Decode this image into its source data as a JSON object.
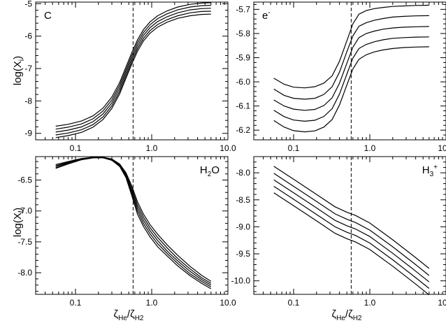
{
  "figure": {
    "ylabel": "log(X",
    "ylabel_sub": "i",
    "ylabel_end": ")",
    "xlabel_main": "ζ",
    "xlabel_sub1": "He",
    "xlabel_mid": "/ζ",
    "xlabel_sub2": "H2"
  },
  "chart_data": [
    {
      "type": "line",
      "panel": "top-left",
      "label": "C",
      "label_parts": [
        {
          "t": "C",
          "s": "normal"
        }
      ],
      "label_placement": "top-left",
      "xscale": "log",
      "xlim": [
        0.03,
        10.0
      ],
      "ylim": [
        -9.2,
        -4.95
      ],
      "xticks": [
        0.1,
        1.0,
        10.0
      ],
      "xticklabels": [
        "0.1",
        "1.0",
        "10.0"
      ],
      "yticks": [
        -9,
        -8,
        -7,
        -6,
        -5
      ],
      "yticklabels": [
        "-9",
        "-8",
        "-7",
        "-6",
        "-5"
      ],
      "vline_x": 0.57,
      "x": [
        0.055,
        0.08,
        0.12,
        0.17,
        0.23,
        0.3,
        0.38,
        0.46,
        0.55,
        0.65,
        0.78,
        0.95,
        1.2,
        1.6,
        2.2,
        3.2,
        4.5,
        6.0
      ],
      "series": [
        {
          "values": [
            -8.78,
            -8.72,
            -8.62,
            -8.46,
            -8.22,
            -7.88,
            -7.43,
            -6.95,
            -6.5,
            -6.12,
            -5.8,
            -5.56,
            -5.37,
            -5.22,
            -5.1,
            -5.02,
            -4.98,
            -4.97
          ]
        },
        {
          "values": [
            -8.87,
            -8.81,
            -8.71,
            -8.55,
            -8.31,
            -7.97,
            -7.52,
            -7.04,
            -6.59,
            -6.21,
            -5.89,
            -5.65,
            -5.46,
            -5.31,
            -5.19,
            -5.1,
            -5.06,
            -5.05
          ]
        },
        {
          "values": [
            -8.96,
            -8.9,
            -8.8,
            -8.64,
            -8.4,
            -8.06,
            -7.61,
            -7.13,
            -6.68,
            -6.3,
            -5.98,
            -5.74,
            -5.55,
            -5.4,
            -5.28,
            -5.19,
            -5.15,
            -5.14
          ]
        },
        {
          "values": [
            -9.05,
            -8.99,
            -8.89,
            -8.73,
            -8.49,
            -8.15,
            -7.7,
            -7.22,
            -6.77,
            -6.39,
            -6.07,
            -5.83,
            -5.64,
            -5.49,
            -5.37,
            -5.28,
            -5.24,
            -5.23
          ]
        },
        {
          "values": [
            -9.13,
            -9.07,
            -8.97,
            -8.81,
            -8.57,
            -8.23,
            -7.78,
            -7.3,
            -6.85,
            -6.47,
            -6.15,
            -5.91,
            -5.72,
            -5.57,
            -5.45,
            -5.37,
            -5.33,
            -5.32
          ]
        }
      ]
    },
    {
      "type": "line",
      "panel": "top-right",
      "label": "e-",
      "label_parts": [
        {
          "t": "e",
          "s": "normal"
        },
        {
          "t": "-",
          "s": "sup"
        }
      ],
      "label_placement": "top-left",
      "xscale": "log",
      "xlim": [
        0.03,
        10.0
      ],
      "ylim": [
        -6.24,
        -5.67
      ],
      "xticks": [
        0.1,
        1.0,
        10.0
      ],
      "xticklabels": [
        "0.1",
        "1.0",
        "10.0"
      ],
      "yticks": [
        -6.2,
        -6.1,
        -6.0,
        -5.9,
        -5.8,
        -5.7
      ],
      "yticklabels": [
        "-6.2",
        "-6.1",
        "-6.0",
        "-5.9",
        "-5.8",
        "-5.7"
      ],
      "vline_x": 0.57,
      "x": [
        0.055,
        0.075,
        0.1,
        0.14,
        0.19,
        0.25,
        0.32,
        0.4,
        0.5,
        0.6,
        0.72,
        0.9,
        1.15,
        1.5,
        2.0,
        2.8,
        4.0,
        6.0
      ],
      "series": [
        {
          "values": [
            -5.985,
            -6.01,
            -6.022,
            -6.025,
            -6.02,
            -6.005,
            -5.975,
            -5.915,
            -5.83,
            -5.76,
            -5.72,
            -5.705,
            -5.697,
            -5.692,
            -5.688,
            -5.686,
            -5.684,
            -5.683
          ]
        },
        {
          "values": [
            -6.03,
            -6.056,
            -6.068,
            -6.072,
            -6.068,
            -6.052,
            -6.02,
            -5.96,
            -5.875,
            -5.81,
            -5.77,
            -5.755,
            -5.745,
            -5.738,
            -5.732,
            -5.729,
            -5.727,
            -5.726
          ]
        },
        {
          "values": [
            -6.075,
            -6.1,
            -6.113,
            -6.118,
            -6.114,
            -6.098,
            -6.066,
            -6.006,
            -5.923,
            -5.857,
            -5.817,
            -5.8,
            -5.79,
            -5.782,
            -5.777,
            -5.774,
            -5.772,
            -5.771
          ]
        },
        {
          "values": [
            -6.118,
            -6.144,
            -6.158,
            -6.163,
            -6.159,
            -6.143,
            -6.111,
            -6.051,
            -5.968,
            -5.902,
            -5.862,
            -5.845,
            -5.834,
            -5.826,
            -5.82,
            -5.817,
            -5.815,
            -5.814
          ]
        },
        {
          "values": [
            -6.16,
            -6.187,
            -6.202,
            -6.207,
            -6.203,
            -6.187,
            -6.156,
            -6.096,
            -6.013,
            -5.947,
            -5.907,
            -5.888,
            -5.876,
            -5.868,
            -5.862,
            -5.858,
            -5.856,
            -5.855
          ]
        }
      ]
    },
    {
      "type": "line",
      "panel": "bottom-left",
      "label": "H2O",
      "label_parts": [
        {
          "t": "H",
          "s": "normal"
        },
        {
          "t": "2",
          "s": "sub"
        },
        {
          "t": "O",
          "s": "normal"
        }
      ],
      "label_placement": "top-right",
      "xscale": "log",
      "xlim": [
        0.03,
        10.0
      ],
      "ylim": [
        -8.35,
        -6.12
      ],
      "xticks": [
        0.1,
        1.0,
        10.0
      ],
      "xticklabels": [
        "0.1",
        "1.0",
        "10.0"
      ],
      "yticks": [
        -8.0,
        -7.5,
        -7.0,
        -6.5
      ],
      "yticklabels": [
        "-8.0",
        "-7.5",
        "-7.0",
        "-6.5"
      ],
      "vline_x": 0.57,
      "x": [
        0.055,
        0.08,
        0.12,
        0.17,
        0.23,
        0.3,
        0.38,
        0.46,
        0.55,
        0.65,
        0.78,
        0.95,
        1.2,
        1.6,
        2.2,
        3.2,
        4.5,
        6.0
      ],
      "series": [
        {
          "values": [
            -6.25,
            -6.2,
            -6.15,
            -6.13,
            -6.13,
            -6.16,
            -6.24,
            -6.38,
            -6.6,
            -6.85,
            -7.05,
            -7.22,
            -7.38,
            -7.55,
            -7.72,
            -7.9,
            -8.04,
            -8.14
          ]
        },
        {
          "values": [
            -6.27,
            -6.21,
            -6.16,
            -6.13,
            -6.13,
            -6.17,
            -6.25,
            -6.4,
            -6.64,
            -6.9,
            -7.1,
            -7.27,
            -7.43,
            -7.6,
            -7.77,
            -7.94,
            -8.08,
            -8.17
          ]
        },
        {
          "values": [
            -6.28,
            -6.22,
            -6.16,
            -6.13,
            -6.13,
            -6.17,
            -6.26,
            -6.42,
            -6.68,
            -6.95,
            -7.15,
            -7.32,
            -7.48,
            -7.65,
            -7.81,
            -7.98,
            -8.11,
            -8.2
          ]
        },
        {
          "values": [
            -6.3,
            -6.23,
            -6.17,
            -6.14,
            -6.13,
            -6.18,
            -6.27,
            -6.44,
            -6.72,
            -7.0,
            -7.2,
            -7.37,
            -7.53,
            -7.69,
            -7.85,
            -8.02,
            -8.14,
            -8.23
          ]
        },
        {
          "values": [
            -6.31,
            -6.24,
            -6.17,
            -6.14,
            -6.14,
            -6.18,
            -6.28,
            -6.46,
            -6.76,
            -7.05,
            -7.25,
            -7.42,
            -7.58,
            -7.73,
            -7.89,
            -8.05,
            -8.17,
            -8.26
          ]
        }
      ]
    },
    {
      "type": "line",
      "panel": "bottom-right",
      "label": "H3+",
      "label_parts": [
        {
          "t": "H",
          "s": "normal"
        },
        {
          "t": "3",
          "s": "sub"
        },
        {
          "t": "+",
          "s": "sup"
        }
      ],
      "label_placement": "top-right",
      "xscale": "log",
      "xlim": [
        0.03,
        10.0
      ],
      "ylim": [
        -10.25,
        -7.7
      ],
      "xticks": [
        0.1,
        1.0,
        10.0
      ],
      "xticklabels": [
        "0.1",
        "1.0",
        "10.0"
      ],
      "yticks": [
        -10.0,
        -9.5,
        -9.0,
        -8.5,
        -8.0
      ],
      "yticklabels": [
        "-10.0",
        "-9.5",
        "-9.0",
        "-8.5",
        "-8.0"
      ],
      "vline_x": 0.57,
      "x": [
        0.055,
        0.1,
        0.2,
        0.35,
        0.5,
        0.65,
        1.0,
        2.0,
        4.0,
        6.0
      ],
      "series": [
        {
          "values": [
            -7.88,
            -8.12,
            -8.4,
            -8.63,
            -8.73,
            -8.79,
            -8.93,
            -9.24,
            -9.57,
            -9.77
          ]
        },
        {
          "values": [
            -8.01,
            -8.25,
            -8.53,
            -8.76,
            -8.86,
            -8.92,
            -9.06,
            -9.37,
            -9.7,
            -9.9
          ]
        },
        {
          "values": [
            -8.13,
            -8.37,
            -8.65,
            -8.88,
            -8.98,
            -9.04,
            -9.18,
            -9.49,
            -9.82,
            -10.02
          ]
        },
        {
          "values": [
            -8.25,
            -8.49,
            -8.77,
            -9.0,
            -9.1,
            -9.16,
            -9.3,
            -9.61,
            -9.94,
            -10.14
          ]
        },
        {
          "values": [
            -8.37,
            -8.61,
            -8.89,
            -9.12,
            -9.22,
            -9.28,
            -9.42,
            -9.73,
            -10.06,
            -10.26
          ]
        }
      ]
    }
  ]
}
